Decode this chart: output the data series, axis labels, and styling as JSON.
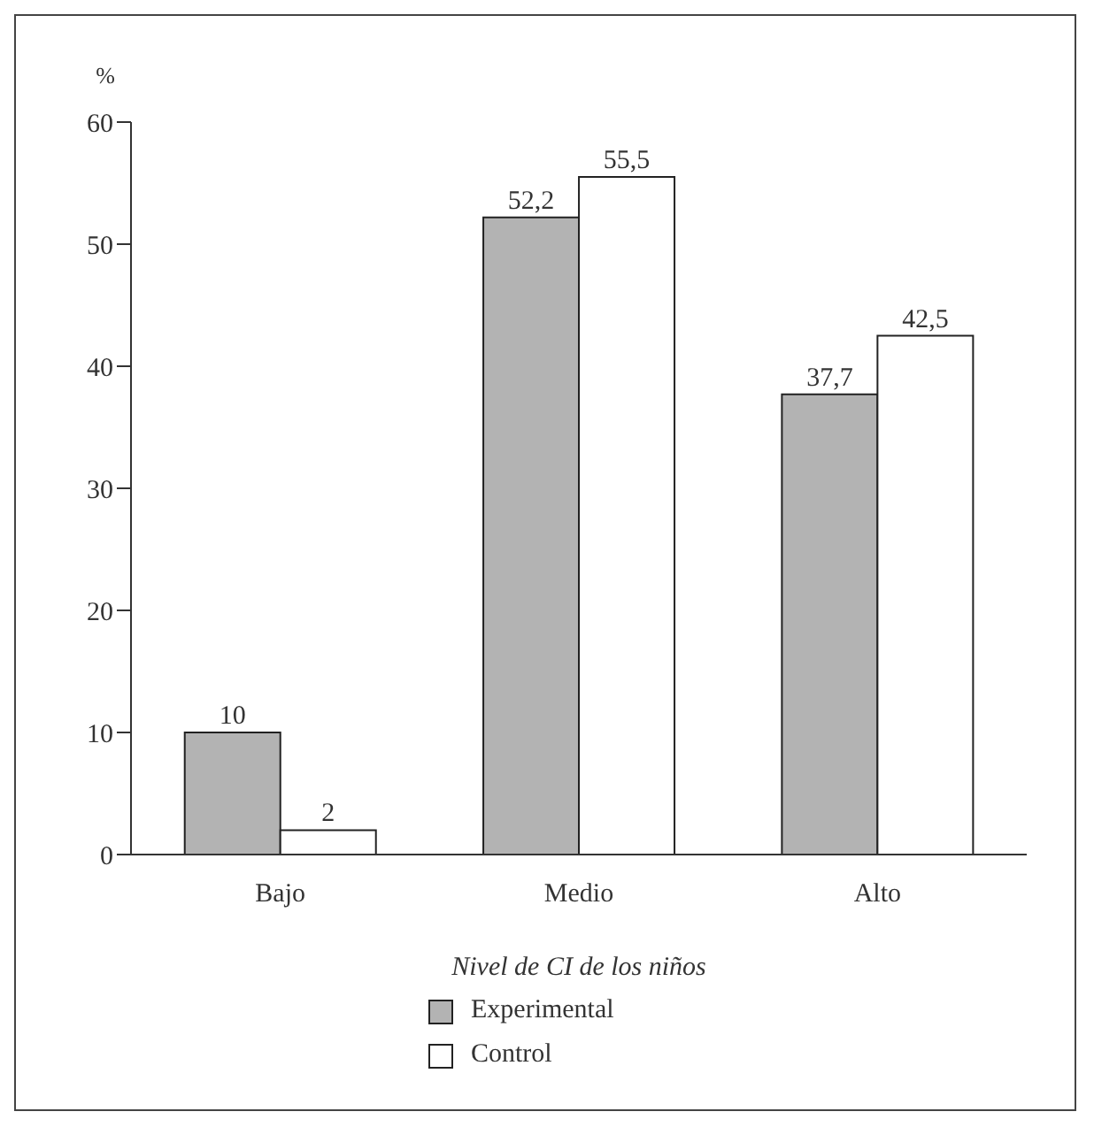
{
  "chart_data": {
    "type": "bar",
    "ylabel": "%",
    "xlabel": "Nivel de CI de los niños",
    "categories": [
      "Bajo",
      "Medio",
      "Alto"
    ],
    "series": [
      {
        "name": "Experimental",
        "color": "#b3b3b3",
        "values": [
          10,
          52.2,
          37.7
        ],
        "value_labels": [
          "10",
          "52,2",
          "37,7"
        ]
      },
      {
        "name": "Control",
        "color": "#ffffff",
        "values": [
          2,
          55.5,
          42.5
        ],
        "value_labels": [
          "2",
          "55,5",
          "42,5"
        ]
      }
    ],
    "ylim": [
      0,
      60
    ],
    "yticks": [
      0,
      10,
      20,
      30,
      40,
      50,
      60
    ],
    "grid": false,
    "legend": "bottom"
  }
}
